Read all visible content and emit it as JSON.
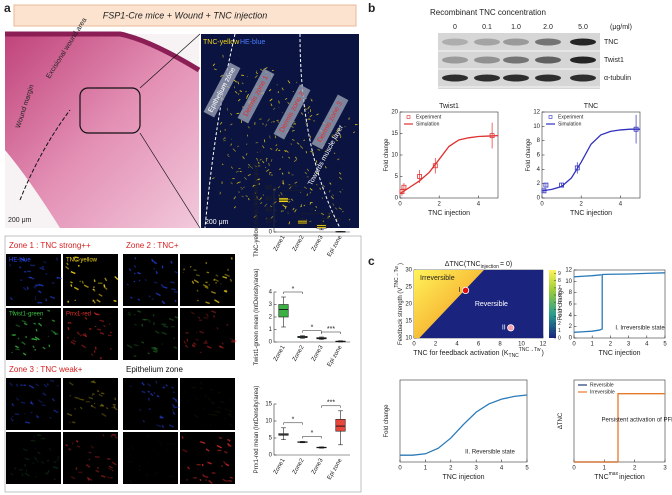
{
  "figure": {
    "panel_a": {
      "label": "a",
      "header": "FSP1-Cre mice + Wound + TNC injection",
      "histology": {
        "labels": [
          "Excisional wound area",
          "Wound margin"
        ],
        "scale": "200 μm"
      },
      "fluorescence": {
        "stain_tnc": "TNC-yellow",
        "stain_he": "HE-blue",
        "zones": [
          "Epithelium zone",
          "Dermis zone 1",
          "Dermis zone 2",
          "Dermis zone 3"
        ],
        "direction": "Towards muscle layer",
        "scale": "200 μm"
      },
      "zone_grid": {
        "titles": [
          "Zone 1 : TNC strong++",
          "Zone 2 : TNC+",
          "Zone 3 : TNC weak+",
          "Epithelium zone"
        ],
        "channels": [
          "HE-blue",
          "TNC-yellow",
          "Twist1-green",
          "Prrx1-red"
        ]
      }
    },
    "panel_b": {
      "label": "b",
      "blot_title": "Recombinant TNC concentration",
      "concentrations": [
        "0",
        "0.1",
        "1.0",
        "2.0",
        "5.0"
      ],
      "unit": "(μg/ml)",
      "bands": [
        "TNC",
        "Twist1",
        "α-tubulin"
      ]
    },
    "panel_c": {
      "label": "c"
    }
  },
  "chart_data": [
    {
      "type": "box",
      "ylabel": "TNC-yellow mean (IntDensity/area)",
      "categories": [
        "Zone1",
        "Zone2",
        "Zone3",
        "Epi zone"
      ],
      "boxes": [
        [
          50,
          54,
          58,
          62,
          66
        ],
        [
          12,
          15,
          18,
          21,
          24
        ],
        [
          4,
          7,
          10,
          13,
          15
        ],
        [
          0,
          0.2,
          0.5,
          0.8,
          1
        ]
      ],
      "colors": [
        "#f2d51c",
        "#f2d51c",
        "#f2d51c",
        "#f2d51c"
      ],
      "ylim": [
        0,
        80
      ],
      "yticks": [
        0,
        20,
        40,
        60,
        80
      ],
      "significance": [
        "***",
        "*",
        "**"
      ]
    },
    {
      "type": "box",
      "ylabel": "Twist1-green mean (IntDensity/area)",
      "categories": [
        "Zone1",
        "Zone2",
        "Zone3",
        "Epi zone"
      ],
      "boxes": [
        [
          1.2,
          2.0,
          2.6,
          3.0,
          3.6
        ],
        [
          0.3,
          0.35,
          0.4,
          0.45,
          0.5
        ],
        [
          0.2,
          0.25,
          0.3,
          0.35,
          0.4
        ],
        [
          0,
          0.02,
          0.05,
          0.07,
          0.1
        ]
      ],
      "colors": [
        "#3cb043",
        "#3cb043",
        "#3cb043",
        "#3cb043"
      ],
      "ylim": [
        0,
        4
      ],
      "yticks": [
        0,
        1,
        2,
        3,
        4
      ],
      "significance": [
        "*",
        "*",
        "***"
      ]
    },
    {
      "type": "box",
      "ylabel": "Prrx1-red mean (IntDensity/area)",
      "categories": [
        "Zone1",
        "Zone2",
        "Zone3",
        "Epi zone"
      ],
      "boxes": [
        [
          4.5,
          5.8,
          6,
          6.3,
          8
        ],
        [
          3.6,
          3.7,
          3.8,
          3.9,
          4
        ],
        [
          2,
          2.1,
          2.2,
          2.3,
          2.4
        ],
        [
          3,
          7,
          8.5,
          10.5,
          13
        ]
      ],
      "colors": [
        "#f0f0f0",
        "#f0f0f0",
        "#f0f0f0",
        "#e8453c"
      ],
      "ylim": [
        0,
        15
      ],
      "yticks": [
        0,
        5,
        10,
        15
      ],
      "significance": [
        "*",
        "*",
        "***"
      ]
    },
    {
      "type": "line",
      "title": "Twist1",
      "xlabel": "TNC injection",
      "ylabel": "Fold change",
      "xlim": [
        0,
        5
      ],
      "xticks": [
        0,
        2,
        4
      ],
      "ylim": [
        0,
        20
      ],
      "yticks": [
        0,
        5,
        10,
        15,
        20
      ],
      "series": [
        {
          "name": "Experiment",
          "color": "#e03030",
          "marker": "square",
          "x": [
            0.1,
            0.2,
            1,
            1.8,
            4.7
          ],
          "values": [
            1.5,
            2.5,
            5,
            7.5,
            14.5
          ],
          "errors": [
            1,
            1,
            1.5,
            1.8,
            3
          ]
        },
        {
          "name": "Simulation",
          "color": "#e03030",
          "x": [
            0,
            0.5,
            1,
            1.5,
            2,
            2.5,
            3,
            3.5,
            4,
            4.5,
            5
          ],
          "values": [
            1,
            2.5,
            4,
            6,
            9,
            12,
            13.5,
            14,
            14.3,
            14.4,
            14.5
          ]
        }
      ]
    },
    {
      "type": "line",
      "title": "TNC",
      "xlabel": "TNC injection",
      "ylabel": "Fold change",
      "xlim": [
        0,
        5
      ],
      "xticks": [
        0,
        2,
        4
      ],
      "ylim": [
        0,
        12
      ],
      "yticks": [
        0,
        2,
        4,
        6,
        8,
        10,
        12
      ],
      "series": [
        {
          "name": "Experiment",
          "color": "#3030c0",
          "marker": "square",
          "x": [
            0.1,
            0.2,
            1,
            1.8,
            4.8
          ],
          "values": [
            1,
            1.8,
            1.8,
            4.2,
            9.6
          ],
          "errors": [
            0.3,
            0.3,
            0.3,
            0.8,
            2
          ]
        },
        {
          "name": "Simulation",
          "color": "#3030c0",
          "x": [
            0,
            0.5,
            1,
            1.5,
            2,
            2.5,
            3,
            3.5,
            4,
            4.5,
            5
          ],
          "values": [
            1,
            1.2,
            1.6,
            2.8,
            5,
            7.5,
            8.8,
            9.3,
            9.5,
            9.6,
            9.6
          ]
        }
      ]
    },
    {
      "type": "region",
      "title": "ΔTNC(TNC",
      "title_sub": "injection",
      "title_end": "= 0)",
      "xlabel": "TNC for feedback activation (K",
      "xlabel_sub": "TNC",
      "xlabel_sup": "TNC→Tw",
      "xlabel_end": ")",
      "ylabel": "Feedback strength (V",
      "ylabel_sup": "TNC→Tw",
      "ylabel_end": ")",
      "xlim": [
        0,
        12
      ],
      "xticks": [
        0,
        2,
        4,
        6,
        8,
        10,
        12
      ],
      "ylim": [
        10,
        30
      ],
      "yticks": [
        10,
        15,
        20,
        25,
        30
      ],
      "boundary_x": [
        0.5,
        2,
        3.5,
        5,
        6.5
      ],
      "boundary_y": [
        10,
        15,
        20,
        25,
        30
      ],
      "region_labels": [
        "Irreversible",
        "Reversible"
      ],
      "points": [
        {
          "label": "I",
          "x": 4.8,
          "y": 24,
          "color": "#e01010"
        },
        {
          "label": "II",
          "x": 9,
          "y": 13,
          "color": "#f4a0b0"
        }
      ],
      "colorbar_lim": [
        0,
        9.5
      ],
      "colorbar_ticks": [
        0,
        1,
        2,
        3,
        4,
        5,
        6,
        7,
        8,
        9
      ]
    },
    {
      "type": "line",
      "xlabel": "TNC injection",
      "ylabel": "Fold change",
      "annotation": "I. Irreversible state",
      "xlim": [
        0,
        5
      ],
      "xticks": [
        0,
        1,
        2,
        3,
        4,
        5
      ],
      "ylim": [
        0,
        12
      ],
      "yticks": [
        0,
        2,
        4,
        6,
        8,
        10,
        12
      ],
      "series": [
        {
          "color": "#2a7ab8",
          "x": [
            0,
            0.5,
            1,
            1.4,
            1.55,
            1.55,
            2,
            3,
            4,
            5
          ],
          "values": [
            1,
            1.1,
            1.2,
            1.4,
            1.6,
            11.2,
            11.25,
            11.3,
            11.4,
            11.5
          ]
        },
        {
          "color": "#2a7ab8",
          "x": [
            0,
            0.5,
            1,
            1.5
          ],
          "values": [
            10.8,
            10.9,
            11,
            11.15
          ]
        }
      ]
    },
    {
      "type": "line",
      "xlabel": "TNC injection",
      "ylabel": "Fold change",
      "annotation": "II. Reversible state",
      "xlim": [
        0,
        5
      ],
      "xticks": [
        0,
        1,
        2,
        3,
        4,
        5
      ],
      "ylim": [
        0,
        12
      ],
      "series": [
        {
          "color": "#2a7ab8",
          "x": [
            0,
            0.5,
            1,
            1.5,
            2,
            2.5,
            3,
            3.5,
            4,
            4.5,
            5
          ],
          "values": [
            1,
            1,
            1.2,
            2,
            3.5,
            5.5,
            7.3,
            8.5,
            9.2,
            9.6,
            9.8
          ]
        }
      ]
    },
    {
      "type": "line",
      "xlabel": "TNC",
      "xlabel_sup": "max",
      "xlabel_end": "injection",
      "ylabel": "ΔTNC",
      "annotation": "Persistent activation of PFL",
      "xlim": [
        0,
        3
      ],
      "xticks": [
        0,
        1,
        2,
        3
      ],
      "ylim": [
        0,
        12
      ],
      "series": [
        {
          "name": "Reversible",
          "color": "#1f3d6e",
          "x": [
            0,
            1.45
          ],
          "values": [
            0,
            0
          ]
        },
        {
          "name": "Irreversible",
          "color": "#e8782a",
          "x": [
            0,
            1.45,
            1.45,
            3
          ],
          "values": [
            0,
            0,
            10,
            10
          ]
        }
      ]
    }
  ]
}
